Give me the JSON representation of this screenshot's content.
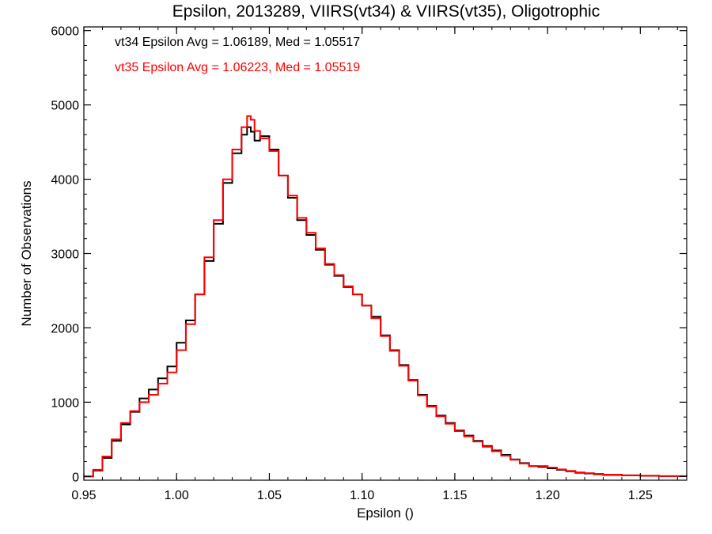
{
  "chart_data": {
    "type": "line",
    "step": true,
    "title": "Epsilon, 2013289, VIIRS(vt34) & VIIRS(vt35), Oligotrophic",
    "xlabel": "Epsilon ()",
    "ylabel": "Number of Observations",
    "xlim": [
      0.95,
      1.275
    ],
    "ylim": [
      -50,
      6050
    ],
    "x_ticks": [
      "0.95",
      "1.00",
      "1.05",
      "1.10",
      "1.15",
      "1.20",
      "1.25"
    ],
    "x_tick_values": [
      0.95,
      1.0,
      1.05,
      1.1,
      1.15,
      1.2,
      1.25
    ],
    "y_ticks": [
      "0",
      "1000",
      "2000",
      "3000",
      "4000",
      "5000",
      "6000"
    ],
    "y_tick_values": [
      0,
      1000,
      2000,
      3000,
      4000,
      5000,
      6000
    ],
    "grid": false,
    "legend_position": "top-left",
    "annotations": [
      {
        "text": "vt34 Epsilon Avg = 1.06189, Med = 1.05517",
        "color": "#000000"
      },
      {
        "text": "vt35 Epsilon Avg = 1.06223, Med = 1.05519",
        "color": "#ff0000"
      }
    ],
    "series": [
      {
        "color": "#000000",
        "x": [
          0.95,
          0.955,
          0.96,
          0.965,
          0.97,
          0.975,
          0.98,
          0.985,
          0.99,
          0.995,
          1.0,
          1.005,
          1.01,
          1.015,
          1.02,
          1.025,
          1.03,
          1.035,
          1.038,
          1.04,
          1.042,
          1.045,
          1.05,
          1.055,
          1.06,
          1.065,
          1.07,
          1.075,
          1.08,
          1.085,
          1.09,
          1.095,
          1.1,
          1.105,
          1.11,
          1.115,
          1.12,
          1.125,
          1.13,
          1.135,
          1.14,
          1.145,
          1.15,
          1.155,
          1.16,
          1.165,
          1.17,
          1.175,
          1.18,
          1.185,
          1.19,
          1.195,
          1.2,
          1.205,
          1.21,
          1.215,
          1.22,
          1.225,
          1.23,
          1.24,
          1.25,
          1.26,
          1.275
        ],
        "y": [
          0,
          80,
          250,
          480,
          700,
          870,
          1050,
          1170,
          1320,
          1480,
          1800,
          2100,
          2450,
          2900,
          3400,
          3950,
          4350,
          4600,
          4700,
          4640,
          4520,
          4580,
          4400,
          4050,
          3750,
          3450,
          3250,
          3050,
          2850,
          2700,
          2550,
          2450,
          2300,
          2150,
          1900,
          1700,
          1500,
          1300,
          1100,
          950,
          820,
          720,
          620,
          550,
          480,
          410,
          350,
          290,
          230,
          180,
          140,
          130,
          110,
          90,
          70,
          50,
          40,
          30,
          20,
          15,
          10,
          5,
          0
        ]
      },
      {
        "color": "#ff0000",
        "x": [
          0.95,
          0.955,
          0.96,
          0.965,
          0.97,
          0.975,
          0.98,
          0.985,
          0.99,
          0.995,
          1.0,
          1.005,
          1.01,
          1.015,
          1.02,
          1.025,
          1.03,
          1.035,
          1.038,
          1.04,
          1.042,
          1.045,
          1.05,
          1.055,
          1.06,
          1.065,
          1.07,
          1.075,
          1.08,
          1.085,
          1.09,
          1.095,
          1.1,
          1.105,
          1.11,
          1.115,
          1.12,
          1.125,
          1.13,
          1.135,
          1.14,
          1.145,
          1.15,
          1.155,
          1.16,
          1.165,
          1.17,
          1.175,
          1.18,
          1.185,
          1.19,
          1.195,
          1.2,
          1.205,
          1.21,
          1.215,
          1.22,
          1.225,
          1.23,
          1.24,
          1.25,
          1.26,
          1.275
        ],
        "y": [
          0,
          90,
          270,
          500,
          720,
          880,
          1000,
          1100,
          1250,
          1400,
          1700,
          2050,
          2450,
          2950,
          3450,
          4000,
          4400,
          4700,
          4850,
          4800,
          4650,
          4550,
          4380,
          4050,
          3780,
          3480,
          3280,
          3070,
          2860,
          2710,
          2560,
          2450,
          2300,
          2130,
          1890,
          1690,
          1490,
          1290,
          1090,
          940,
          810,
          710,
          610,
          540,
          470,
          400,
          340,
          280,
          225,
          175,
          140,
          140,
          120,
          95,
          75,
          55,
          45,
          35,
          25,
          15,
          10,
          5,
          0
        ]
      }
    ]
  }
}
